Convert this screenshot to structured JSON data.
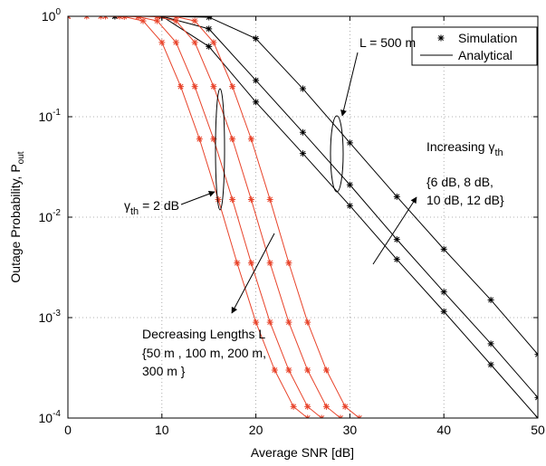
{
  "chart_data": {
    "type": "line",
    "log_y": true,
    "grid": true,
    "legend_corner": "top-right",
    "xlabel": "Average SNR [dB]",
    "ylabel": {
      "text": "Outage Probability, P",
      "sub": "out"
    },
    "xlim": [
      0,
      50
    ],
    "xticks": [
      0,
      10,
      20,
      30,
      40,
      50
    ],
    "ylim": [
      0.0001,
      1
    ],
    "yticks": [
      {
        "value": 1,
        "label": "10^0"
      },
      {
        "value": 0.1,
        "label": "10^-1"
      },
      {
        "value": 0.01,
        "label": "10^-2"
      },
      {
        "value": 0.001,
        "label": "10^-3"
      },
      {
        "value": 0.0001,
        "label": "10^-4"
      }
    ],
    "legend": [
      {
        "name": "Simulation",
        "color": "#000000"
      },
      {
        "name": "Analytical",
        "color": "#000000"
      }
    ],
    "series": [
      {
        "color": "#000000",
        "x": [
          0,
          5,
          10,
          15,
          20,
          25,
          30,
          35,
          40,
          45,
          50
        ],
        "values": [
          1,
          1,
          1,
          0.98,
          0.6,
          0.19,
          0.055,
          0.016,
          0.0048,
          0.0015,
          0.00043
        ]
      },
      {
        "color": "#000000",
        "x": [
          0,
          5,
          10,
          15,
          20,
          25,
          30,
          35,
          40,
          45,
          50
        ],
        "values": [
          1,
          1,
          1,
          0.75,
          0.23,
          0.07,
          0.021,
          0.006,
          0.0018,
          0.00055,
          0.00016
        ]
      },
      {
        "color": "#000000",
        "x": [
          0,
          5,
          10,
          15,
          20,
          25,
          30,
          35,
          40,
          45,
          50
        ],
        "values": [
          1,
          1,
          1,
          0.5,
          0.14,
          0.043,
          0.013,
          0.0038,
          0.00115,
          0.00034,
          0.0001
        ]
      },
      {
        "color": "#e8432a",
        "x": [
          0,
          2,
          4,
          6,
          8,
          10,
          12,
          14,
          16,
          18,
          20,
          22,
          24,
          25.5
        ],
        "values": [
          1,
          1,
          1,
          0.99,
          0.9,
          0.55,
          0.2,
          0.06,
          0.015,
          0.0035,
          0.0009,
          0.0003,
          0.00013,
          0.0001
        ]
      },
      {
        "color": "#e8432a",
        "x": [
          0,
          3.5,
          5.5,
          7.5,
          9.5,
          11.5,
          13.5,
          15.5,
          17.5,
          19.5,
          21.5,
          23.5,
          25.5,
          27
        ],
        "values": [
          1,
          1,
          1,
          0.99,
          0.9,
          0.55,
          0.2,
          0.06,
          0.015,
          0.0035,
          0.0009,
          0.0003,
          0.00013,
          0.0001
        ]
      },
      {
        "color": "#e8432a",
        "x": [
          0,
          5.5,
          7.5,
          9.5,
          11.5,
          13.5,
          15.5,
          17.5,
          19.5,
          21.5,
          23.5,
          25.5,
          27.5,
          29
        ],
        "values": [
          1,
          1,
          1,
          0.99,
          0.9,
          0.55,
          0.2,
          0.06,
          0.015,
          0.0035,
          0.0009,
          0.0003,
          0.00013,
          0.0001
        ]
      },
      {
        "color": "#e8432a",
        "x": [
          0,
          7.5,
          9.5,
          11.5,
          13.5,
          15.5,
          17.5,
          19.5,
          21.5,
          23.5,
          25.5,
          27.5,
          29.5,
          31
        ],
        "values": [
          1,
          1,
          1,
          0.99,
          0.9,
          0.55,
          0.2,
          0.06,
          0.015,
          0.0035,
          0.0009,
          0.0003,
          0.00013,
          0.0001
        ]
      }
    ],
    "annotations": [
      {
        "text": "L = 500 m"
      },
      {
        "text": "Increasing γ",
        "sub": "th"
      },
      {
        "text": "{6 dB, 8 dB,"
      },
      {
        "text": "10 dB, 12 dB}"
      },
      {
        "text": "γ",
        "sub": "th",
        "after": " = 2 dB"
      },
      {
        "text": "Decreasing Lengths L"
      },
      {
        "text": "{50 m , 100 m, 200 m,"
      },
      {
        "text": "300 m }"
      }
    ]
  }
}
